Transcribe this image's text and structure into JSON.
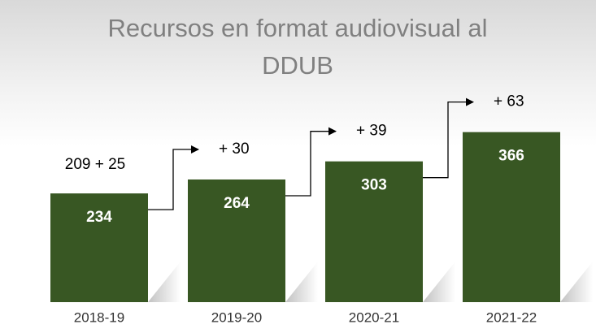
{
  "chart_data": {
    "type": "bar",
    "title": "Recursos en format audiovisual al DDUB",
    "categories": [
      "2018-19",
      "2019-20",
      "2020-21",
      "2021-22"
    ],
    "values": [
      234,
      264,
      303,
      366
    ],
    "annotations": [
      "209 + 25",
      "+ 30",
      "+ 39",
      "+ 63"
    ],
    "color": "#385723"
  }
}
